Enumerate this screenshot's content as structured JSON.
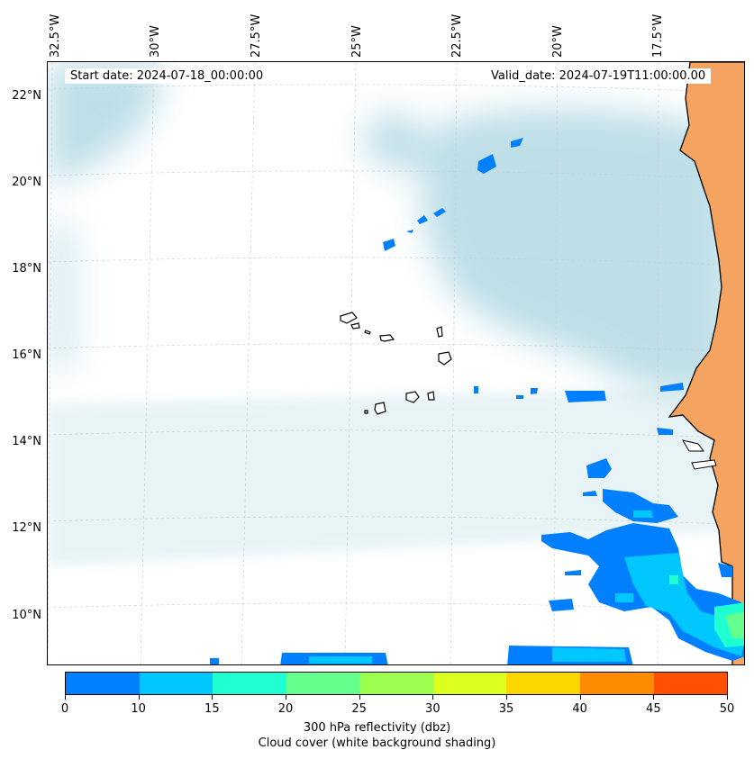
{
  "map": {
    "lon_labels": [
      "32.5°W",
      "30°W",
      "27.5°W",
      "25°W",
      "22.5°W",
      "20°W",
      "17.5°W"
    ],
    "lat_labels": [
      "22°N",
      "20°N",
      "18°N",
      "16°N",
      "14°N",
      "12°N",
      "10°N"
    ],
    "start_date": "Start date: 2024-07-18_00:00:00",
    "valid_date": "Valid_date: 2024-07-19T11:00:00.00",
    "colors": {
      "land": "#f4a460",
      "coastline": "#000000",
      "cloud_cover": "#bfdfe8",
      "gridline": "#cccccc"
    }
  },
  "colorbar": {
    "label_line1": "300 hPa reflectivity (dbz)",
    "label_line2": "Cloud cover (white background shading)",
    "ticks": [
      "0",
      "10",
      "15",
      "20",
      "25",
      "30",
      "35",
      "40",
      "45",
      "50"
    ],
    "colors": [
      "#0080ff",
      "#00c8ff",
      "#1effd2",
      "#64ff8c",
      "#9cff50",
      "#dcff1e",
      "#ffd700",
      "#ff8c00",
      "#ff4f00"
    ]
  }
}
